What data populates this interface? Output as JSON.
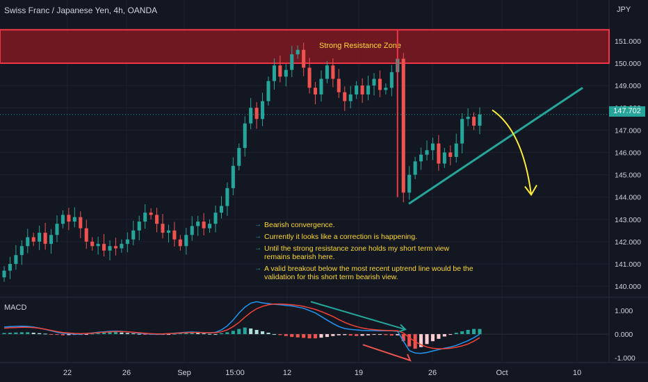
{
  "header": {
    "title": "Swiss Franc / Japanese Yen, 4h, OANDA",
    "currency": "JPY",
    "last_price": "147.702"
  },
  "indicator": {
    "label": "MACD"
  },
  "annotations": {
    "zone_label": "Strong Resistance Zone",
    "notes": [
      "Bearish convergence.",
      "Currently it looks like a correction is happening.",
      "Until the strong resistance zone holds my short term view remains bearish here.",
      "A valid breakout below the most recent uptrend line would be the validation for this short term bearish view."
    ]
  },
  "colors": {
    "background": "#131722",
    "bull": "#26a69a",
    "bear": "#ef5350",
    "zone_fill": "#801922",
    "zone_border": "#f23645",
    "text_yellow": "#fdd835",
    "trendline": "#26a69a",
    "forecast_arrow": "#ffeb3b",
    "macd_line": "#2196f3",
    "signal_line": "#f44336"
  },
  "chart_data": {
    "type": "candlestick",
    "x_tick_labels": [
      "22",
      "26",
      "Sep",
      "15:00",
      "12",
      "19",
      "26",
      "Oct",
      "10"
    ],
    "y_tick_labels": [
      "140.000",
      "141.000",
      "142.000",
      "143.000",
      "144.000",
      "145.000",
      "146.000",
      "147.000",
      "148.000",
      "149.000",
      "150.000",
      "151.000"
    ],
    "ylim": [
      139.6,
      151.9
    ],
    "resistance_zone": [
      150.0,
      151.5
    ],
    "last_price": 147.702,
    "closes": [
      140.7,
      141.0,
      141.4,
      141.8,
      142.2,
      142.0,
      142.4,
      141.9,
      142.3,
      142.8,
      143.2,
      142.9,
      143.1,
      142.6,
      142.0,
      141.8,
      141.9,
      141.6,
      141.8,
      141.7,
      141.9,
      142.1,
      142.5,
      142.9,
      143.3,
      143.2,
      142.8,
      142.4,
      142.5,
      142.1,
      141.8,
      142.3,
      142.7,
      142.9,
      142.6,
      142.8,
      143.3,
      143.6,
      144.4,
      145.4,
      146.2,
      147.3,
      148.0,
      147.5,
      148.3,
      149.2,
      149.9,
      149.4,
      149.7,
      150.4,
      150.6,
      149.8,
      148.9,
      148.6,
      149.3,
      149.9,
      149.3,
      148.7,
      148.3,
      148.6,
      149.0,
      148.6,
      149.0,
      149.3,
      148.8,
      148.9,
      149.6,
      150.2,
      144.2,
      145.0,
      145.6,
      145.9,
      146.1,
      146.4,
      145.5,
      146.0,
      145.8,
      146.4,
      147.5,
      147.6,
      147.2,
      147.7
    ],
    "uptrend_line": {
      "start": 143.7,
      "end": 148.9
    },
    "macd": {
      "ylim": [
        -1.15,
        1.45
      ],
      "y_tick_labels": [
        "1.000",
        "0.000",
        "-1.000"
      ],
      "histogram": [
        0.05,
        0.06,
        0.07,
        0.08,
        0.08,
        0.06,
        0.04,
        0.02,
        -0.01,
        -0.03,
        -0.05,
        -0.04,
        -0.03,
        -0.02,
        -0.01,
        0.02,
        0.04,
        0.06,
        0.08,
        0.09,
        0.07,
        0.05,
        0.03,
        0.01,
        -0.01,
        -0.02,
        -0.03,
        -0.02,
        -0.01,
        0.01,
        0.03,
        0.05,
        0.06,
        0.05,
        0.03,
        0.01,
        0.0,
        0.04,
        0.08,
        0.14,
        0.22,
        0.28,
        0.24,
        0.18,
        0.12,
        0.06,
        0.0,
        -0.04,
        -0.08,
        -0.12,
        -0.14,
        -0.16,
        -0.18,
        -0.18,
        -0.15,
        -0.12,
        -0.08,
        -0.05,
        -0.04,
        -0.06,
        -0.08,
        -0.07,
        -0.05,
        -0.03,
        -0.02,
        -0.04,
        -0.06,
        -0.05,
        -0.3,
        -0.52,
        -0.62,
        -0.55,
        -0.42,
        -0.3,
        -0.2,
        -0.1,
        -0.02,
        0.06,
        0.12,
        0.18,
        0.22,
        0.22
      ],
      "macd_line": [
        0.3,
        0.32,
        0.33,
        0.34,
        0.33,
        0.3,
        0.26,
        0.2,
        0.14,
        0.08,
        0.04,
        0.02,
        0.0,
        0.0,
        0.02,
        0.05,
        0.08,
        0.1,
        0.12,
        0.13,
        0.12,
        0.1,
        0.07,
        0.04,
        0.02,
        0.0,
        -0.01,
        0.0,
        0.02,
        0.04,
        0.06,
        0.08,
        0.09,
        0.08,
        0.06,
        0.05,
        0.08,
        0.18,
        0.35,
        0.6,
        0.9,
        1.15,
        1.32,
        1.38,
        1.33,
        1.3,
        1.27,
        1.25,
        1.22,
        1.2,
        1.15,
        1.1,
        1.0,
        0.9,
        0.75,
        0.6,
        0.45,
        0.32,
        0.24,
        0.2,
        0.18,
        0.16,
        0.15,
        0.15,
        0.14,
        0.14,
        0.14,
        0.12,
        -0.3,
        -0.7,
        -0.8,
        -0.82,
        -0.78,
        -0.72,
        -0.66,
        -0.6,
        -0.55,
        -0.48,
        -0.38,
        -0.28,
        -0.15,
        0.0
      ],
      "signal_line": [
        0.25,
        0.27,
        0.28,
        0.29,
        0.29,
        0.28,
        0.25,
        0.21,
        0.16,
        0.11,
        0.07,
        0.05,
        0.03,
        0.02,
        0.03,
        0.04,
        0.06,
        0.08,
        0.1,
        0.11,
        0.11,
        0.1,
        0.08,
        0.06,
        0.04,
        0.02,
        0.01,
        0.01,
        0.02,
        0.03,
        0.05,
        0.06,
        0.07,
        0.07,
        0.06,
        0.06,
        0.06,
        0.1,
        0.18,
        0.32,
        0.5,
        0.72,
        0.92,
        1.08,
        1.18,
        1.25,
        1.28,
        1.28,
        1.27,
        1.25,
        1.22,
        1.18,
        1.12,
        1.05,
        0.96,
        0.86,
        0.75,
        0.62,
        0.5,
        0.4,
        0.32,
        0.26,
        0.22,
        0.19,
        0.17,
        0.16,
        0.15,
        0.14,
        0.05,
        -0.15,
        -0.32,
        -0.45,
        -0.55,
        -0.6,
        -0.62,
        -0.62,
        -0.6,
        -0.56,
        -0.5,
        -0.42,
        -0.3,
        -0.15
      ]
    }
  }
}
